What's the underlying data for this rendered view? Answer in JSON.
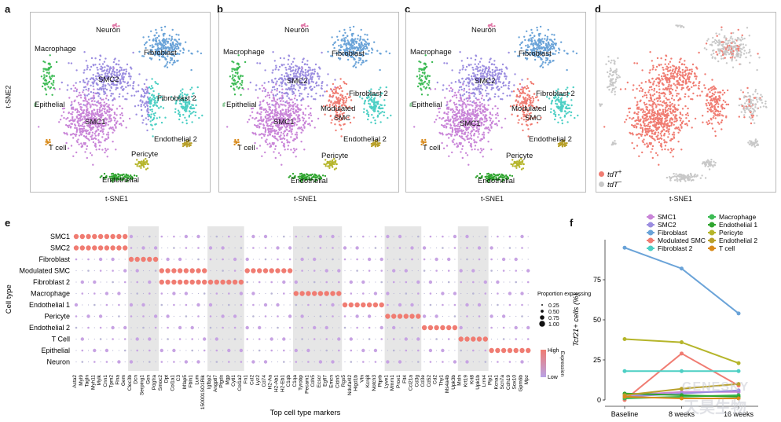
{
  "panels": {
    "a": "a",
    "b": "b",
    "c": "c",
    "d": "d",
    "e": "e",
    "f": "f"
  },
  "tsne": {
    "xlabel": "t-SNE1",
    "ylabel": "t-SNE2",
    "clusters_a": [
      "Neuron",
      "Macrophage",
      "Fibroblast",
      "SMC2",
      "Epithelial",
      "Fibroblast 2",
      "SMC1",
      "Endothelial 2",
      "T cell",
      "Pericyte",
      "Endothelial"
    ],
    "clusters_b": [
      "Neuron",
      "Macrophage",
      "Fibroblast",
      "SMC2",
      "Epithelial",
      "Fibroblast 2",
      "Modulated",
      "SMC",
      "SMC1",
      "Endothelial 2",
      "T cell",
      "Pericyte",
      "Endothelial"
    ],
    "legend_d": [
      {
        "label": "tdT",
        "sup": "+",
        "color": "#f07c72"
      },
      {
        "label": "tdT",
        "sup": "−",
        "color": "#c8c8c8"
      }
    ],
    "colors": {
      "SMC1": "#c985d8",
      "SMC2": "#9b8de0",
      "Fibroblast": "#6aa3d8",
      "Fibroblast 2": "#4ccfc4",
      "Modulated SMC": "#f07c72",
      "Macrophage": "#3dbb55",
      "Endothelial": "#2fa52f",
      "Pericyte": "#b5b52a",
      "Endothelial 2": "#b8a02a",
      "T cell": "#d98a1a",
      "Neuron": "#e07aa8",
      "Epithelial": "#8fc99a",
      "grey": "#c8c8c8"
    }
  },
  "chart_data": [
    {
      "type": "scatter",
      "title": "Top cell type markers",
      "ylabel": "Cell type",
      "xlabel": "Top cell type markers",
      "rows": [
        "SMC1",
        "SMC2",
        "Fibroblast",
        "Modulated SMC",
        "Fibroblast 2",
        "Macrophage",
        "Endothelial 1",
        "Pericyte",
        "Endothelial 2",
        "T Cell",
        "Epithelial",
        "Neuron"
      ],
      "columns": [
        "Acta2",
        "Myl9",
        "Tagln",
        "Myh11",
        "Mylk",
        "Cnn1",
        "Tpm2",
        "Flna",
        "Gem",
        "Clec3b",
        "Dcn",
        "Serping1",
        "Gsn",
        "Pdgfra",
        "Smoc2",
        "Dpt",
        "Col1a1",
        "C3",
        "Mfap5",
        "Fbln1",
        "Lum",
        "150001SO1Rik",
        "Igfbp2",
        "Angptl7",
        "Ptgds",
        "Mgp",
        "Cytl1",
        "Col1a2",
        "Fn1",
        "Ccl2",
        "Lyz2",
        "Cd74",
        "H2-Aa",
        "H2-Ab1",
        "H2-Eb1",
        "C1qb",
        "C1qa",
        "Tyrobp",
        "Pecam1",
        "Cdh5",
        "Ecscr",
        "Egfl7",
        "Emcn",
        "Cldn5",
        "Rgs5",
        "Ndufa4l2",
        "Higd1b",
        "Vtn",
        "Kcnj8",
        "Notch3",
        "Ptprb",
        "Lyve1",
        "Mmrn1",
        "Prox1",
        "Flt4",
        "Ccl21a",
        "Cd3g",
        "Cd3e",
        "Cd52",
        "Cd2",
        "Thy1",
        "Ms4a4b",
        "Upk3b",
        "Msln",
        "Krt19",
        "Krt8",
        "Upk1b",
        "Lrrn4",
        "Plp1",
        "Kcna1",
        "Scn7a",
        "Cdh19",
        "Sox10",
        "Gpm6b",
        "Mpz"
      ],
      "size_legend_title": "Proportion expressing",
      "size_legend": [
        0.25,
        0.5,
        0.75,
        1.0
      ],
      "color_legend": {
        "title": "Expression",
        "high": "High",
        "low": "Low",
        "high_color": "#f07c72",
        "low_color": "#b9a3e6"
      },
      "blocks": [
        [
          0,
          8
        ],
        [
          9,
          13
        ],
        [
          14,
          21
        ],
        [
          22,
          27
        ],
        [
          28,
          35
        ],
        [
          36,
          43
        ],
        [
          44,
          50
        ],
        [
          51,
          56
        ],
        [
          57,
          62
        ],
        [
          63,
          67
        ],
        [
          68,
          74
        ]
      ]
    },
    {
      "type": "line",
      "ylabel": "Tcf21+ cells (%)",
      "categories": [
        "Baseline",
        "8 weeks",
        "16 weeks"
      ],
      "ylim": [
        0,
        100
      ],
      "yticks": [
        0,
        25,
        50,
        75
      ],
      "series": [
        {
          "name": "SMC1",
          "values": [
            3,
            5,
            5
          ],
          "color": "#c985d8"
        },
        {
          "name": "SMC2",
          "values": [
            2,
            4,
            6
          ],
          "color": "#9b8de0"
        },
        {
          "name": "Fibroblast",
          "values": [
            95,
            82,
            54
          ],
          "color": "#6aa3d8"
        },
        {
          "name": "Modulated SMC",
          "values": [
            0,
            29,
            9
          ],
          "color": "#f07c72"
        },
        {
          "name": "Fibroblast 2",
          "values": [
            18,
            18,
            18
          ],
          "color": "#4ccfc4"
        },
        {
          "name": "Macrophage",
          "values": [
            1,
            2,
            3
          ],
          "color": "#3dbb55"
        },
        {
          "name": "Endothelial 1",
          "values": [
            4,
            3,
            2
          ],
          "color": "#2fa52f"
        },
        {
          "name": "Pericyte",
          "values": [
            38,
            36,
            23
          ],
          "color": "#b5b52a"
        },
        {
          "name": "Endothelial 2",
          "values": [
            3,
            7,
            10
          ],
          "color": "#b8a02a"
        },
        {
          "name": "T cell",
          "values": [
            2,
            1,
            1
          ],
          "color": "#d98a1a"
        }
      ]
    }
  ],
  "watermark": {
    "line1": "GENESKY",
    "line2": "天昊生物"
  }
}
